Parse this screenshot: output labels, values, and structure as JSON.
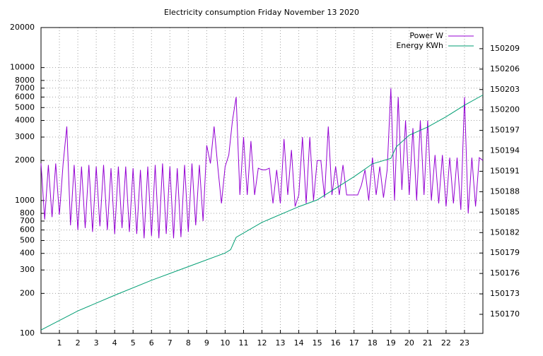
{
  "chart_data": {
    "type": "line",
    "title": "Electricity consumption Friday November 13 2020",
    "xlim": [
      0,
      24
    ],
    "xticks": [
      1,
      2,
      3,
      4,
      5,
      6,
      7,
      8,
      9,
      10,
      11,
      12,
      13,
      14,
      15,
      16,
      17,
      18,
      19,
      20,
      21,
      22,
      23
    ],
    "ylim": [
      100,
      20000
    ],
    "log_y": true,
    "yticks": [
      100,
      200,
      300,
      400,
      500,
      600,
      700,
      800,
      1000,
      2000,
      3000,
      4000,
      5000,
      6000,
      7000,
      8000,
      10000,
      20000
    ],
    "y2lim": [
      150167.2,
      150212.1
    ],
    "y2ticks": [
      150170,
      150173,
      150176,
      150179,
      150182,
      150185,
      150188,
      150191,
      150194,
      150197,
      150200,
      150203,
      150206,
      150209
    ],
    "grid": true,
    "legend": "top-right",
    "series": [
      {
        "name": "Power W",
        "color": "#9400d3",
        "x": [
          0,
          0.2,
          0.4,
          0.6,
          0.8,
          1,
          1.2,
          1.4,
          1.6,
          1.8,
          2,
          2.2,
          2.4,
          2.6,
          2.8,
          3,
          3.2,
          3.4,
          3.6,
          3.8,
          4,
          4.2,
          4.4,
          4.6,
          4.8,
          5,
          5.2,
          5.4,
          5.6,
          5.8,
          6,
          6.2,
          6.4,
          6.6,
          6.8,
          7,
          7.2,
          7.4,
          7.6,
          7.8,
          8,
          8.2,
          8.4,
          8.6,
          8.8,
          9,
          9.2,
          9.4,
          9.6,
          9.8,
          10,
          10.2,
          10.4,
          10.6,
          10.8,
          11,
          11.2,
          11.4,
          11.6,
          11.8,
          12,
          12.2,
          12.4,
          12.6,
          12.8,
          13,
          13.2,
          13.4,
          13.6,
          13.8,
          14,
          14.2,
          14.4,
          14.6,
          14.8,
          15,
          15.2,
          15.4,
          15.6,
          15.8,
          16,
          16.2,
          16.4,
          16.6,
          16.8,
          17,
          17.2,
          17.4,
          17.6,
          17.8,
          18,
          18.2,
          18.4,
          18.6,
          18.8,
          19,
          19.2,
          19.4,
          19.6,
          19.8,
          20,
          20.2,
          20.4,
          20.6,
          20.8,
          21,
          21.2,
          21.4,
          21.6,
          21.8,
          22,
          22.2,
          22.4,
          22.6,
          22.8,
          23,
          23.2,
          23.4,
          23.6,
          23.8,
          24
        ],
        "values": [
          1900,
          720,
          1850,
          750,
          1900,
          780,
          1900,
          3600,
          650,
          1850,
          600,
          1800,
          620,
          1850,
          580,
          1800,
          640,
          1850,
          600,
          1750,
          560,
          1800,
          620,
          1800,
          580,
          1750,
          560,
          1700,
          520,
          1800,
          540,
          1850,
          520,
          1900,
          560,
          1800,
          520,
          1750,
          530,
          1850,
          580,
          1900,
          650,
          1850,
          700,
          2600,
          1900,
          3600,
          1800,
          950,
          1800,
          2200,
          4000,
          6000,
          1100,
          3000,
          1100,
          2800,
          1100,
          1750,
          1700,
          1700,
          1750,
          950,
          1700,
          950,
          2900,
          1100,
          2400,
          900,
          1100,
          3000,
          950,
          3000,
          1000,
          2000,
          2000,
          1050,
          3600,
          1100,
          1800,
          1100,
          1850,
          1100,
          1100,
          1100,
          1100,
          1300,
          1700,
          1000,
          2100,
          1100,
          1800,
          1050,
          1700,
          7000,
          1000,
          6000,
          1200,
          4000,
          1100,
          3500,
          1000,
          4000,
          1100,
          4000,
          1000,
          2200,
          950,
          2200,
          900,
          2100,
          950,
          2100,
          850,
          6000,
          800,
          2100,
          900,
          2100,
          2000
        ]
      },
      {
        "name": "Energy KWh",
        "color": "#009e73",
        "axis": "y2",
        "x": [
          0,
          2,
          4,
          6,
          8,
          10,
          10.3,
          10.6,
          12,
          14,
          15,
          16,
          17,
          18,
          19,
          19.3,
          20,
          21,
          22,
          23,
          24
        ],
        "values": [
          150167.7,
          150170.5,
          150172.8,
          150175,
          150177,
          150179,
          150179.5,
          150181.3,
          150183.5,
          150185.8,
          150186.8,
          150188.5,
          150190.2,
          150192.1,
          150192.9,
          150194.6,
          150196.3,
          150197.5,
          150199,
          150200.7,
          150202.2
        ]
      }
    ]
  }
}
